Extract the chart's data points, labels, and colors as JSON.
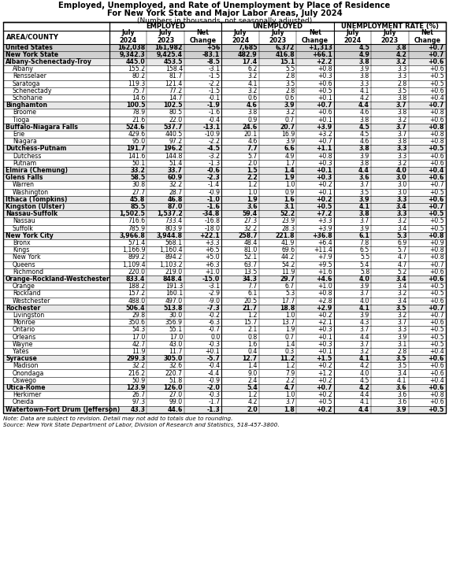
{
  "title1": "Employed, Unemployed, and Rate of Unemployment by Place of Residence",
  "title2": "For New York State and Major Labor Areas, July 2024",
  "title3": "(Numbers in thousands, not seasonally adjusted)",
  "footnote1": "Note: Data are subject to revision. Detail may not add to totals due to rounding.",
  "footnote2": "Source: New York State Department of Labor, Division of Research and Statistics, 518-457-3800.",
  "rows": [
    [
      "United States",
      "162,038",
      "161,982",
      "+56",
      "7,685",
      "6,372",
      "+1,313",
      "4.5",
      "3.8",
      "+0.7"
    ],
    [
      "New York State",
      "9,342.3",
      "9,425.4",
      "-83.1",
      "482.9",
      "416.8",
      "+66.1",
      "4.9",
      "4.2",
      "+0.7"
    ],
    [
      "Albany-Schenectady-Troy",
      "445.0",
      "453.5",
      "-8.5",
      "17.4",
      "15.1",
      "+2.2",
      "3.8",
      "3.2",
      "+0.6"
    ],
    [
      "    Albany",
      "155.2",
      "158.4",
      "-3.1",
      "6.2",
      "5.5",
      "+0.8",
      "3.9",
      "3.3",
      "+0.6"
    ],
    [
      "    Rensselaer",
      "80.2",
      "81.7",
      "-1.5",
      "3.2",
      "2.8",
      "+0.3",
      "3.8",
      "3.3",
      "+0.5"
    ],
    [
      "    Saratoga",
      "119.3",
      "121.4",
      "-2.2",
      "4.1",
      "3.5",
      "+0.6",
      "3.3",
      "2.8",
      "+0.5"
    ],
    [
      "    Schenectady",
      "75.7",
      "77.2",
      "-1.5",
      "3.2",
      "2.8",
      "+0.5",
      "4.1",
      "3.5",
      "+0.6"
    ],
    [
      "    Schoharie",
      "14.6",
      "14.7",
      "-0.1",
      "0.6",
      "0.6",
      "+0.1",
      "4.2",
      "3.8",
      "+0.4"
    ],
    [
      "Binghamton",
      "100.5",
      "102.5",
      "-1.9",
      "4.6",
      "3.9",
      "+0.7",
      "4.4",
      "3.7",
      "+0.7"
    ],
    [
      "    Broome",
      "78.9",
      "80.5",
      "-1.6",
      "3.8",
      "3.2",
      "+0.6",
      "4.6",
      "3.8",
      "+0.8"
    ],
    [
      "    Tioga",
      "21.6",
      "22.0",
      "-0.4",
      "0.9",
      "0.7",
      "+0.1",
      "3.8",
      "3.2",
      "+0.6"
    ],
    [
      "Buffalo-Niagara Falls",
      "524.6",
      "537.7",
      "-13.1",
      "24.6",
      "20.7",
      "+3.9",
      "4.5",
      "3.7",
      "+0.8"
    ],
    [
      "    Erie",
      "429.6",
      "440.5",
      "-10.9",
      "20.1",
      "16.9",
      "+3.2",
      "4.5",
      "3.7",
      "+0.8"
    ],
    [
      "    Niagara",
      "95.0",
      "97.2",
      "-2.2",
      "4.6",
      "3.9",
      "+0.7",
      "4.6",
      "3.8",
      "+0.8"
    ],
    [
      "Dutchess-Putnam",
      "191.7",
      "196.2",
      "-4.5",
      "7.7",
      "6.6",
      "+1.1",
      "3.8",
      "3.3",
      "+0.5"
    ],
    [
      "    Dutchess",
      "141.6",
      "144.8",
      "-3.2",
      "5.7",
      "4.9",
      "+0.8",
      "3.9",
      "3.3",
      "+0.6"
    ],
    [
      "    Putnam",
      "50.1",
      "51.4",
      "-1.3",
      "2.0",
      "1.7",
      "+0.3",
      "3.8",
      "3.2",
      "+0.6"
    ],
    [
      "Elmira (Chemung)",
      "33.2",
      "33.7",
      "-0.6",
      "1.5",
      "1.4",
      "+0.1",
      "4.4",
      "4.0",
      "+0.4"
    ],
    [
      "Glens Falls",
      "58.5",
      "60.9",
      "-2.3",
      "2.2",
      "1.9",
      "+0.3",
      "3.6",
      "3.0",
      "+0.6"
    ],
    [
      "    Warren",
      "30.8",
      "32.2",
      "-1.4",
      "1.2",
      "1.0",
      "+0.2",
      "3.7",
      "3.0",
      "+0.7"
    ],
    [
      "    Washington",
      "27.7",
      "28.7",
      "-0.9",
      "1.0",
      "0.9",
      "+0.1",
      "3.5",
      "3.0",
      "+0.5"
    ],
    [
      "Ithaca (Tompkins)",
      "45.8",
      "46.8",
      "-1.0",
      "1.9",
      "1.6",
      "+0.2",
      "3.9",
      "3.3",
      "+0.6"
    ],
    [
      "Kingston (Ulster)",
      "85.5",
      "87.0",
      "-1.6",
      "3.6",
      "3.1",
      "+0.5",
      "4.1",
      "3.4",
      "+0.7"
    ],
    [
      "Nassau-Suffolk",
      "1,502.5",
      "1,537.2",
      "-34.8",
      "59.4",
      "52.2",
      "+7.2",
      "3.8",
      "3.3",
      "+0.5"
    ],
    [
      "    Nassau",
      "716.6",
      "733.4",
      "-16.8",
      "27.3",
      "23.9",
      "+3.3",
      "3.7",
      "3.2",
      "+0.5"
    ],
    [
      "    Suffolk",
      "785.9",
      "803.9",
      "-18.0",
      "32.2",
      "28.3",
      "+3.9",
      "3.9",
      "3.4",
      "+0.5"
    ],
    [
      "New York City",
      "3,966.8",
      "3,944.8",
      "+22.1",
      "258.7",
      "221.8",
      "+36.8",
      "6.1",
      "5.3",
      "+0.8"
    ],
    [
      "    Bronx",
      "571.4",
      "568.1",
      "+3.3",
      "48.4",
      "41.9",
      "+6.4",
      "7.8",
      "6.9",
      "+0.9"
    ],
    [
      "    Kings",
      "1,166.9",
      "1,160.4",
      "+6.5",
      "81.0",
      "69.6",
      "+11.4",
      "6.5",
      "5.7",
      "+0.8"
    ],
    [
      "    New York",
      "899.2",
      "894.2",
      "+5.0",
      "52.1",
      "44.2",
      "+7.9",
      "5.5",
      "4.7",
      "+0.8"
    ],
    [
      "    Queens",
      "1,109.4",
      "1,103.2",
      "+6.3",
      "63.7",
      "54.2",
      "+9.5",
      "5.4",
      "4.7",
      "+0.7"
    ],
    [
      "    Richmond",
      "220.0",
      "219.0",
      "+1.0",
      "13.5",
      "11.9",
      "+1.6",
      "5.8",
      "5.2",
      "+0.6"
    ],
    [
      "Orange-Rockland-Westchester",
      "833.4",
      "848.4",
      "-15.0",
      "34.3",
      "29.7",
      "+4.6",
      "4.0",
      "3.4",
      "+0.6"
    ],
    [
      "    Orange",
      "188.2",
      "191.3",
      "-3.1",
      "7.7",
      "6.7",
      "+1.0",
      "3.9",
      "3.4",
      "+0.5"
    ],
    [
      "    Rockland",
      "157.2",
      "160.1",
      "-2.9",
      "6.1",
      "5.3",
      "+0.8",
      "3.7",
      "3.2",
      "+0.5"
    ],
    [
      "    Westchester",
      "488.0",
      "497.0",
      "-9.0",
      "20.5",
      "17.7",
      "+2.8",
      "4.0",
      "3.4",
      "+0.6"
    ],
    [
      "Rochester",
      "506.4",
      "513.8",
      "-7.3",
      "21.7",
      "18.8",
      "+2.9",
      "4.1",
      "3.5",
      "+0.7"
    ],
    [
      "    Livingston",
      "29.8",
      "30.0",
      "-0.2",
      "1.2",
      "1.0",
      "+0.2",
      "3.9",
      "3.2",
      "+0.7"
    ],
    [
      "    Monroe",
      "350.6",
      "356.9",
      "-6.3",
      "15.7",
      "13.7",
      "+2.1",
      "4.3",
      "3.7",
      "+0.6"
    ],
    [
      "    Ontario",
      "54.3",
      "55.1",
      "-0.7",
      "2.1",
      "1.9",
      "+0.3",
      "3.7",
      "3.3",
      "+0.5"
    ],
    [
      "    Orleans",
      "17.0",
      "17.0",
      "0.0",
      "0.8",
      "0.7",
      "+0.1",
      "4.4",
      "3.9",
      "+0.5"
    ],
    [
      "    Wayne",
      "42.7",
      "43.0",
      "-0.3",
      "1.6",
      "1.4",
      "+0.3",
      "3.7",
      "3.1",
      "+0.5"
    ],
    [
      "    Yates",
      "11.9",
      "11.7",
      "+0.1",
      "0.4",
      "0.3",
      "+0.1",
      "3.2",
      "2.8",
      "+0.4"
    ],
    [
      "Syracuse",
      "299.3",
      "305.0",
      "-5.7",
      "12.7",
      "11.2",
      "+1.5",
      "4.1",
      "3.5",
      "+0.6"
    ],
    [
      "    Madison",
      "32.2",
      "32.6",
      "-0.4",
      "1.4",
      "1.2",
      "+0.2",
      "4.2",
      "3.5",
      "+0.6"
    ],
    [
      "    Onondaga",
      "216.2",
      "220.7",
      "-4.4",
      "9.0",
      "7.9",
      "+1.2",
      "4.0",
      "3.4",
      "+0.6"
    ],
    [
      "    Oswego",
      "50.9",
      "51.8",
      "-0.9",
      "2.4",
      "2.2",
      "+0.2",
      "4.5",
      "4.1",
      "+0.4"
    ],
    [
      "Utica-Rome",
      "123.9",
      "126.0",
      "-2.0",
      "5.4",
      "4.7",
      "+0.7",
      "4.2",
      "3.6",
      "+0.6"
    ],
    [
      "    Herkimer",
      "26.7",
      "27.0",
      "-0.3",
      "1.2",
      "1.0",
      "+0.2",
      "4.4",
      "3.6",
      "+0.8"
    ],
    [
      "    Oneida",
      "97.3",
      "99.0",
      "-1.7",
      "4.2",
      "3.7",
      "+0.5",
      "4.1",
      "3.6",
      "+0.6"
    ],
    [
      "Watertown-Fort Drum (Jefferson)",
      "43.3",
      "44.6",
      "-1.3",
      "2.0",
      "1.8",
      "+0.2",
      "4.4",
      "3.9",
      "+0.5"
    ]
  ],
  "bold_rows": [
    0,
    1,
    2,
    8,
    11,
    14,
    17,
    18,
    21,
    22,
    23,
    26,
    32,
    36,
    43,
    47,
    50
  ],
  "region_rows": [
    0,
    1,
    2,
    8,
    11,
    14,
    17,
    18,
    21,
    22,
    23,
    26,
    32,
    36,
    43,
    47,
    50
  ],
  "indent_rows": [
    3,
    4,
    5,
    6,
    7,
    9,
    10,
    12,
    13,
    15,
    16,
    19,
    20,
    24,
    25,
    27,
    28,
    29,
    30,
    31,
    33,
    34,
    35,
    37,
    38,
    39,
    40,
    41,
    42,
    44,
    45,
    46,
    48,
    49
  ],
  "shading": {
    "us_ny": "#d0d0d0",
    "region": "#e8e8e8",
    "sub": "#ffffff"
  }
}
